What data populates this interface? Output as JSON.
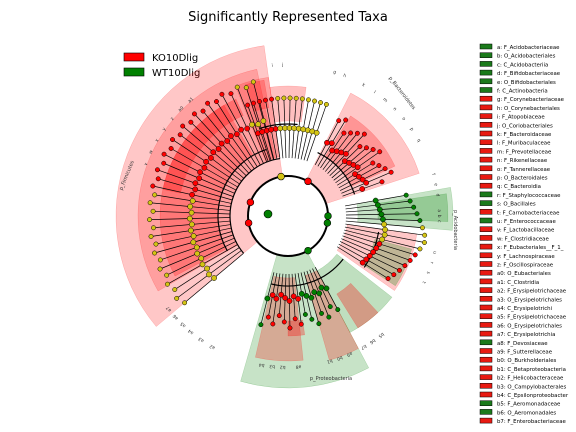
{
  "chart_data": {
    "type": "cladogram",
    "title": "Significantly Represented Taxa",
    "legend": {
      "placement": "top-left",
      "groups": [
        {
          "name": "KO10Dlig",
          "color": "#ff0000"
        },
        {
          "name": "WT10Dlig",
          "color": "#008000"
        }
      ]
    },
    "clades": [
      {
        "label": "p_Firmicutes",
        "group": "KO10Dlig"
      },
      {
        "label": "p_Bacteroidetes",
        "group": "KO10Dlig"
      },
      {
        "label": "p_Acidobacteria",
        "group": "WT10Dlig"
      },
      {
        "label": "p_Proteobacteria",
        "group": "WT10Dlig"
      }
    ],
    "taxa_key": [
      {
        "code": "a",
        "name": "F_Acidobacteriaceae",
        "group": "WT10Dlig"
      },
      {
        "code": "b",
        "name": "O_Acidobacteriales",
        "group": "WT10Dlig"
      },
      {
        "code": "c",
        "name": "C_Acidobacteriia",
        "group": "WT10Dlig"
      },
      {
        "code": "d",
        "name": "F_Bifidobacteriaceae",
        "group": "WT10Dlig"
      },
      {
        "code": "e",
        "name": "O_Bifidobacteriales",
        "group": "WT10Dlig"
      },
      {
        "code": "f",
        "name": "C_Actinobacteria",
        "group": "WT10Dlig"
      },
      {
        "code": "g",
        "name": "F_Corynebacteriaceae",
        "group": "KO10Dlig"
      },
      {
        "code": "h",
        "name": "O_Corynebacteriales",
        "group": "KO10Dlig"
      },
      {
        "code": "i",
        "name": "F_Atopobiaceae",
        "group": "KO10Dlig"
      },
      {
        "code": "j",
        "name": "O_Coriobacteriales",
        "group": "KO10Dlig"
      },
      {
        "code": "k",
        "name": "F_Bacteroidaceae",
        "group": "KO10Dlig"
      },
      {
        "code": "l",
        "name": "F_Muribaculaceae",
        "group": "KO10Dlig"
      },
      {
        "code": "m",
        "name": "F_Prevotellaceae",
        "group": "KO10Dlig"
      },
      {
        "code": "n",
        "name": "F_Rikenellaceae",
        "group": "KO10Dlig"
      },
      {
        "code": "o",
        "name": "F_Tannerellaceae",
        "group": "KO10Dlig"
      },
      {
        "code": "p",
        "name": "O_Bacteroidales",
        "group": "KO10Dlig"
      },
      {
        "code": "q",
        "name": "C_Bacteroidia",
        "group": "KO10Dlig"
      },
      {
        "code": "r",
        "name": "F_Staphylococcaceae",
        "group": "WT10Dlig"
      },
      {
        "code": "s",
        "name": "O_Bacillales",
        "group": "WT10Dlig"
      },
      {
        "code": "t",
        "name": "F_Carnobacteriaceae",
        "group": "KO10Dlig"
      },
      {
        "code": "u",
        "name": "F_Enterococcaceae",
        "group": "WT10Dlig"
      },
      {
        "code": "v",
        "name": "F_Lactobacillaceae",
        "group": "KO10Dlig"
      },
      {
        "code": "w",
        "name": "F_Clostridiaceae",
        "group": "KO10Dlig"
      },
      {
        "code": "x",
        "name": "F_Eubacteriales__F_1_",
        "group": "KO10Dlig"
      },
      {
        "code": "y",
        "name": "F_Lachnospiraceae",
        "group": "KO10Dlig"
      },
      {
        "code": "z",
        "name": "F_Oscillospiraceae",
        "group": "KO10Dlig"
      },
      {
        "code": "a0",
        "name": "O_Eubacteriales",
        "group": "KO10Dlig"
      },
      {
        "code": "a1",
        "name": "C_Clostridia",
        "group": "KO10Dlig"
      },
      {
        "code": "a2",
        "name": "F_Erysipelotrichaceae",
        "group": "KO10Dlig"
      },
      {
        "code": "a3",
        "name": "O_Erysipelotrichales",
        "group": "KO10Dlig"
      },
      {
        "code": "a4",
        "name": "C_Erysipelotrichi",
        "group": "KO10Dlig"
      },
      {
        "code": "a5",
        "name": "F_Erysipelotrichaceae",
        "group": "KO10Dlig"
      },
      {
        "code": "a6",
        "name": "O_Erysipelotrichales",
        "group": "KO10Dlig"
      },
      {
        "code": "a7",
        "name": "C_Erysipelotrichia",
        "group": "KO10Dlig"
      },
      {
        "code": "a8",
        "name": "F_Devosiaceae",
        "group": "WT10Dlig"
      },
      {
        "code": "a9",
        "name": "F_Sutterellaceae",
        "group": "KO10Dlig"
      },
      {
        "code": "b0",
        "name": "O_Burkholderiales",
        "group": "KO10Dlig"
      },
      {
        "code": "b1",
        "name": "C_Betaproteobacteria",
        "group": "KO10Dlig"
      },
      {
        "code": "b2",
        "name": "F_Helicobacteraceae",
        "group": "KO10Dlig"
      },
      {
        "code": "b3",
        "name": "O_Campylobacterales",
        "group": "KO10Dlig"
      },
      {
        "code": "b4",
        "name": "C_Epsilonproteobacter",
        "group": "KO10Dlig"
      },
      {
        "code": "b5",
        "name": "F_Aeromonadaceae",
        "group": "WT10Dlig"
      },
      {
        "code": "b6",
        "name": "O_Aeromonadales",
        "group": "WT10Dlig"
      },
      {
        "code": "b7",
        "name": "F_Enterobacteriaceae",
        "group": "KO10Dlig"
      }
    ],
    "sector_labels": [
      {
        "code": "a",
        "group": "WT10Dlig"
      },
      {
        "code": "b",
        "group": "WT10Dlig"
      },
      {
        "code": "c",
        "group": "WT10Dlig"
      },
      {
        "code": "d",
        "group": "WT10Dlig"
      },
      {
        "code": "e",
        "group": "WT10Dlig"
      },
      {
        "code": "f",
        "group": "WT10Dlig"
      },
      {
        "code": "g",
        "group": "KO10Dlig"
      },
      {
        "code": "h",
        "group": "KO10Dlig"
      },
      {
        "code": "i",
        "group": "KO10Dlig"
      },
      {
        "code": "j",
        "group": "KO10Dlig"
      },
      {
        "code": "k",
        "group": "KO10Dlig"
      },
      {
        "code": "l",
        "group": "KO10Dlig"
      },
      {
        "code": "m",
        "group": "KO10Dlig"
      },
      {
        "code": "n",
        "group": "KO10Dlig"
      },
      {
        "code": "o",
        "group": "KO10Dlig"
      },
      {
        "code": "p",
        "group": "KO10Dlig"
      },
      {
        "code": "q",
        "group": "KO10Dlig"
      },
      {
        "code": "r",
        "group": "WT10Dlig"
      },
      {
        "code": "s",
        "group": "WT10Dlig"
      },
      {
        "code": "t",
        "group": "KO10Dlig"
      },
      {
        "code": "u",
        "group": "WT10Dlig"
      },
      {
        "code": "v",
        "group": "KO10Dlig"
      },
      {
        "code": "w",
        "group": "KO10Dlig"
      },
      {
        "code": "x",
        "group": "KO10Dlig"
      },
      {
        "code": "y",
        "group": "KO10Dlig"
      },
      {
        "code": "z",
        "group": "KO10Dlig"
      },
      {
        "code": "a0",
        "group": "KO10Dlig"
      },
      {
        "code": "a1",
        "group": "KO10Dlig"
      },
      {
        "code": "a2",
        "group": "KO10Dlig"
      },
      {
        "code": "a3",
        "group": "KO10Dlig"
      },
      {
        "code": "a4",
        "group": "KO10Dlig"
      },
      {
        "code": "a5",
        "group": "KO10Dlig"
      },
      {
        "code": "a6",
        "group": "KO10Dlig"
      },
      {
        "code": "a7",
        "group": "KO10Dlig"
      },
      {
        "code": "a8",
        "group": "WT10Dlig"
      },
      {
        "code": "a9",
        "group": "KO10Dlig"
      },
      {
        "code": "b0",
        "group": "KO10Dlig"
      },
      {
        "code": "b1",
        "group": "KO10Dlig"
      },
      {
        "code": "b2",
        "group": "KO10Dlig"
      },
      {
        "code": "b3",
        "group": "KO10Dlig"
      },
      {
        "code": "b4",
        "group": "KO10Dlig"
      },
      {
        "code": "b5",
        "group": "WT10Dlig"
      },
      {
        "code": "b6",
        "group": "WT10Dlig"
      },
      {
        "code": "b7",
        "group": "KO10Dlig"
      }
    ],
    "colors": {
      "KO10Dlig": "#ff0000",
      "WT10Dlig": "#008000",
      "nonsignificant_node": "#d4c414",
      "key_color_KO10Dlig": "#e81a12",
      "key_color_WT10Dlig": "#1b7a1b"
    }
  }
}
